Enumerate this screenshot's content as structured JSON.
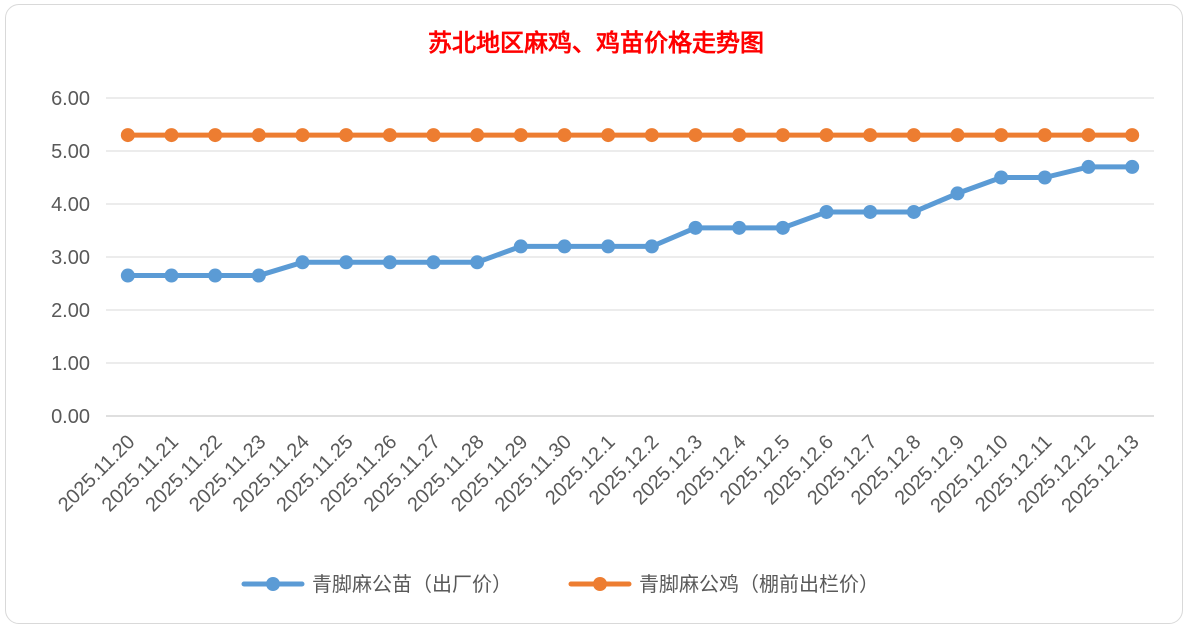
{
  "chart_data": {
    "type": "line",
    "title": "苏北地区麻鸡、鸡苗价格走势图",
    "title_color": "#ff0000",
    "xlabel": "",
    "ylabel": "",
    "ylim": [
      0,
      6
    ],
    "y_ticks": [
      "0.00",
      "1.00",
      "2.00",
      "3.00",
      "4.00",
      "5.00",
      "6.00"
    ],
    "grid": true,
    "legend_position": "bottom",
    "categories": [
      "2025.11.20",
      "2025.11.21",
      "2025.11.22",
      "2025.11.23",
      "2025.11.24",
      "2025.11.25",
      "2025.11.26",
      "2025.11.27",
      "2025.11.28",
      "2025.11.29",
      "2025.11.30",
      "2025.12.1",
      "2025.12.2",
      "2025.12.3",
      "2025.12.4",
      "2025.12.5",
      "2025.12.6",
      "2025.12.7",
      "2025.12.8",
      "2025.12.9",
      "2025.12.10",
      "2025.12.11",
      "2025.12.12",
      "2025.12.13"
    ],
    "series": [
      {
        "name": "青脚麻公苗（出厂价）",
        "color": "#5b9bd5",
        "values": [
          2.65,
          2.65,
          2.65,
          2.65,
          2.9,
          2.9,
          2.9,
          2.9,
          2.9,
          3.2,
          3.2,
          3.2,
          3.2,
          3.55,
          3.55,
          3.55,
          3.85,
          3.85,
          3.85,
          4.2,
          4.5,
          4.5,
          4.7,
          4.7
        ]
      },
      {
        "name": "青脚麻公鸡（棚前出栏价）",
        "color": "#ed7d31",
        "values": [
          5.3,
          5.3,
          5.3,
          5.3,
          5.3,
          5.3,
          5.3,
          5.3,
          5.3,
          5.3,
          5.3,
          5.3,
          5.3,
          5.3,
          5.3,
          5.3,
          5.3,
          5.3,
          5.3,
          5.3,
          5.3,
          5.3,
          5.3,
          5.3
        ]
      }
    ]
  }
}
